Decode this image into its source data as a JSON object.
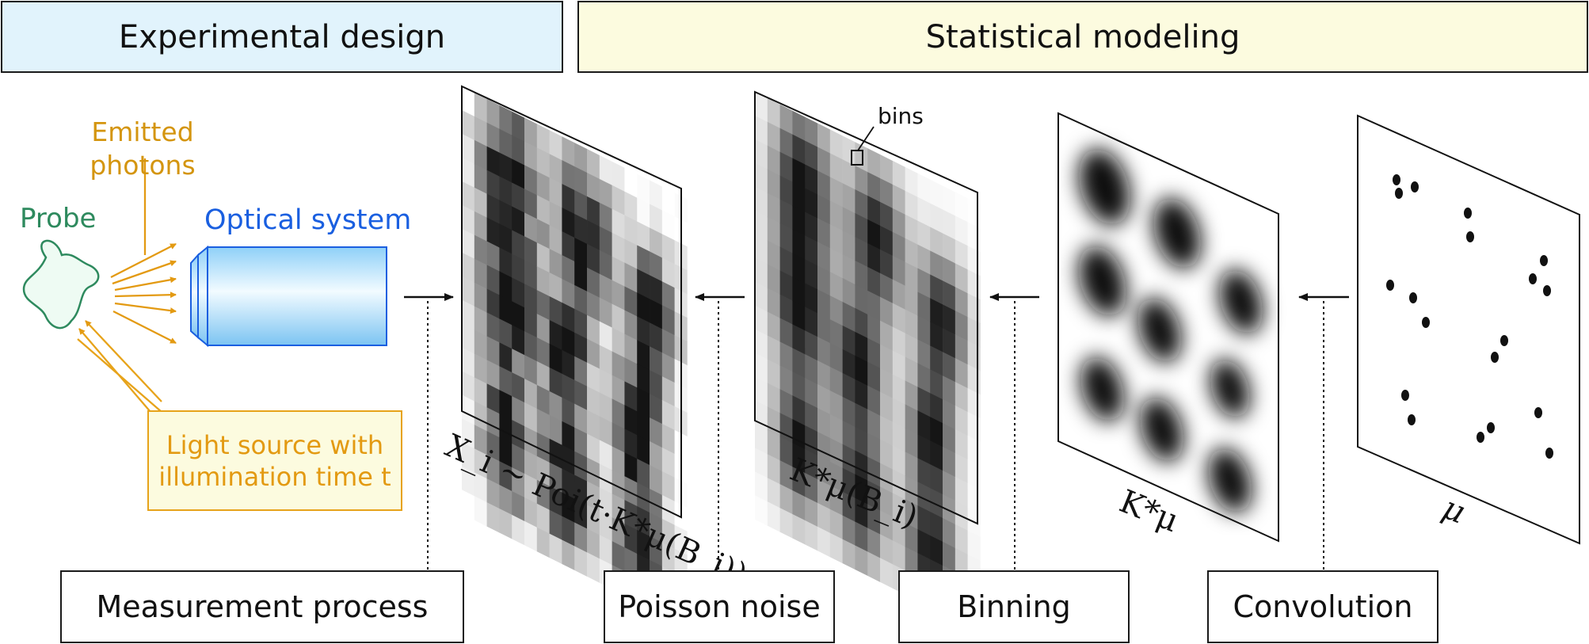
{
  "headers": {
    "experimental_design": "Experimental design",
    "statistical_modeling": "Statistical modeling"
  },
  "labels": {
    "emitted_photons": "Emitted photons",
    "probe": "Probe",
    "optical_system": "Optical system",
    "light_source": "Light source with illumination time t",
    "bins": "bins"
  },
  "panel_labels": {
    "measured": "X_i ~ Poi(t·K*μ(B_i))",
    "binned": "K*μ(B_i)",
    "convolved": "K*μ",
    "mu": "μ"
  },
  "process_boxes": {
    "measurement": "Measurement process",
    "poisson": "Poisson noise",
    "binning": "Binning",
    "convolution": "Convolution"
  },
  "colors": {
    "design_header_bg": "#e1f3fc",
    "modeling_header_bg": "#fcfbdf",
    "probe": "#2e8a5e",
    "photons": "#d4950f",
    "optics": "#1a5fe0",
    "light_box": "#e7a31a"
  }
}
